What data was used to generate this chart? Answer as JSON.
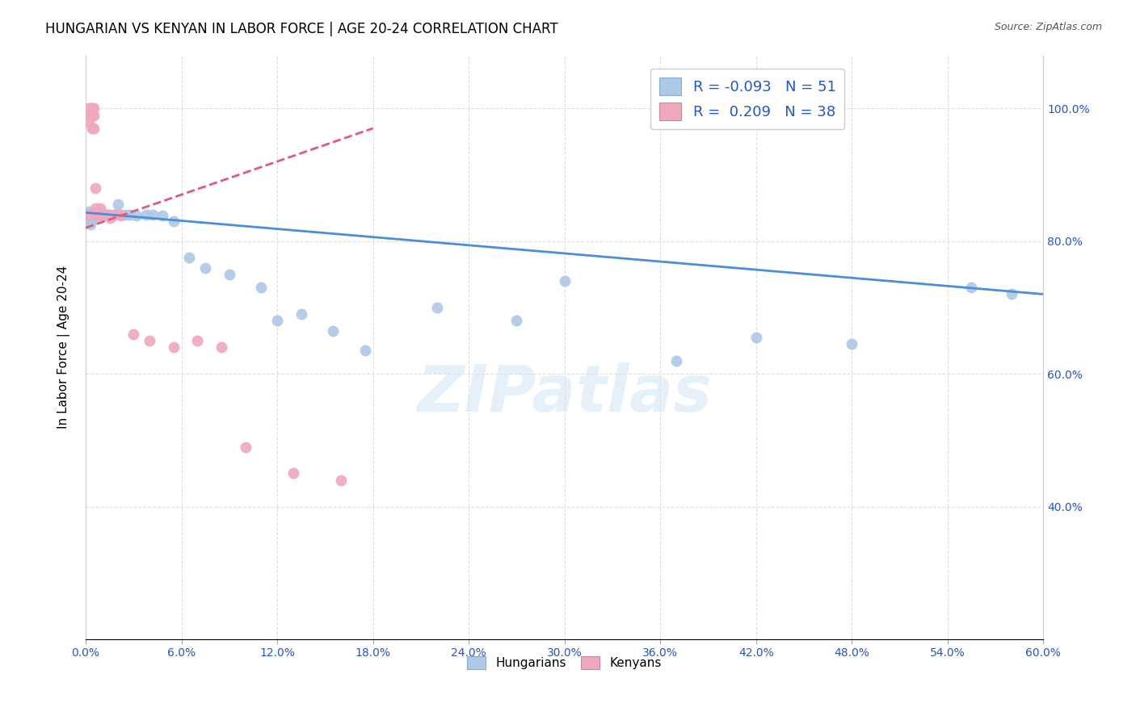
{
  "title": "HUNGARIAN VS KENYAN IN LABOR FORCE | AGE 20-24 CORRELATION CHART",
  "source": "Source: ZipAtlas.com",
  "ylabel": "In Labor Force | Age 20-24",
  "xlim": [
    0.0,
    0.6
  ],
  "ylim": [
    0.2,
    1.08
  ],
  "xticks": [
    0.0,
    0.06,
    0.12,
    0.18,
    0.24,
    0.3,
    0.36,
    0.42,
    0.48,
    0.54,
    0.6
  ],
  "yticks": [
    0.4,
    0.6,
    0.8,
    1.0
  ],
  "blue_color": "#aec8e8",
  "pink_color": "#f0a8bc",
  "trend_blue": "#4a90d9",
  "trend_pink": "#e05a7a",
  "legend_R_blue": "-0.093",
  "legend_N_blue": "51",
  "legend_R_pink": "0.209",
  "legend_N_pink": "38",
  "legend_text_color": "#2255cc",
  "watermark": "ZIPatlas",
  "blue_x": [
    0.001,
    0.002,
    0.002,
    0.003,
    0.003,
    0.004,
    0.004,
    0.005,
    0.005,
    0.005,
    0.006,
    0.006,
    0.007,
    0.007,
    0.008,
    0.008,
    0.009,
    0.01,
    0.01,
    0.011,
    0.012,
    0.013,
    0.014,
    0.015,
    0.016,
    0.018,
    0.02,
    0.022,
    0.025,
    0.028,
    0.032,
    0.038,
    0.042,
    0.048,
    0.055,
    0.065,
    0.075,
    0.09,
    0.11,
    0.12,
    0.135,
    0.155,
    0.175,
    0.22,
    0.27,
    0.3,
    0.37,
    0.42,
    0.48,
    0.555,
    0.58
  ],
  "blue_y": [
    0.835,
    0.845,
    0.83,
    0.84,
    0.825,
    0.835,
    0.84,
    0.84,
    0.838,
    0.835,
    0.84,
    0.84,
    0.84,
    0.84,
    0.84,
    0.838,
    0.84,
    0.838,
    0.84,
    0.84,
    0.84,
    0.84,
    0.838,
    0.84,
    0.838,
    0.84,
    0.855,
    0.838,
    0.84,
    0.84,
    0.838,
    0.84,
    0.84,
    0.838,
    0.83,
    0.775,
    0.76,
    0.75,
    0.73,
    0.68,
    0.69,
    0.665,
    0.635,
    0.7,
    0.68,
    0.74,
    0.62,
    0.655,
    0.645,
    0.73,
    0.72
  ],
  "pink_x": [
    0.001,
    0.001,
    0.002,
    0.002,
    0.003,
    0.003,
    0.003,
    0.004,
    0.004,
    0.004,
    0.005,
    0.005,
    0.005,
    0.006,
    0.006,
    0.006,
    0.007,
    0.007,
    0.008,
    0.008,
    0.009,
    0.009,
    0.01,
    0.01,
    0.011,
    0.012,
    0.013,
    0.015,
    0.018,
    0.022,
    0.03,
    0.04,
    0.055,
    0.07,
    0.085,
    0.1,
    0.13,
    0.16
  ],
  "pink_y": [
    0.84,
    0.84,
    1.0,
    0.98,
    1.0,
    0.99,
    1.0,
    0.99,
    1.0,
    0.97,
    0.99,
    1.0,
    0.97,
    0.88,
    0.85,
    0.84,
    0.84,
    0.84,
    0.845,
    0.84,
    0.85,
    0.84,
    0.84,
    0.84,
    0.84,
    0.84,
    0.84,
    0.835,
    0.84,
    0.84,
    0.66,
    0.65,
    0.64,
    0.65,
    0.64,
    0.49,
    0.45,
    0.44
  ],
  "blue_trend_x": [
    0.0,
    0.6
  ],
  "blue_trend_y": [
    0.843,
    0.72
  ],
  "pink_trend_x": [
    0.0,
    0.18
  ],
  "pink_trend_y": [
    0.82,
    0.97
  ]
}
